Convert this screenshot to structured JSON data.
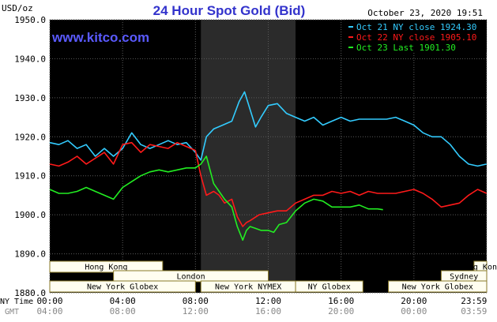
{
  "chart_data": {
    "type": "line",
    "title": "24 Hour Spot Gold (Bid)",
    "ylabel": "USD/oz",
    "watermark": "www.kitco.com",
    "timestamp": "October 23, 2020 19:51",
    "ylim": [
      1880,
      1950
    ],
    "y_ticks": [
      "1950.0",
      "1940.0",
      "1930.0",
      "1920.0",
      "1910.0",
      "1900.0",
      "1890.0",
      "1880.0"
    ],
    "x_label_ny": "NY Time",
    "x_label_gmt": "GMT",
    "x_ticks_ny": [
      "00:00",
      "04:00",
      "08:00",
      "12:00",
      "16:00",
      "20:00",
      "23:59"
    ],
    "x_ticks_gmt": [
      "04:00",
      "08:00",
      "12:00",
      "16:00",
      "20:00",
      "00:00",
      "03:59"
    ],
    "x_units": "hours since 00:00 NY time",
    "shaded_period": [
      8.3,
      13.5
    ],
    "grid": true,
    "legend_position": "top-right",
    "series": [
      {
        "name": "Oct 21 NY close 1924.30",
        "color": "#33ccff",
        "x": [
          0,
          0.5,
          1,
          1.5,
          2,
          2.5,
          3,
          3.5,
          4,
          4.5,
          5,
          5.5,
          6,
          6.5,
          7,
          7.5,
          8,
          8.3,
          8.6,
          9,
          9.5,
          10,
          10.4,
          10.7,
          11,
          11.3,
          11.6,
          12,
          12.5,
          13,
          13.5,
          14,
          14.5,
          15,
          15.5,
          16,
          16.5,
          17,
          17.5,
          18,
          18.5,
          19,
          19.5,
          20,
          20.5,
          21,
          21.5,
          22,
          22.5,
          23,
          23.5,
          23.99
        ],
        "values": [
          1918.5,
          1918,
          1919,
          1917,
          1918,
          1915,
          1917,
          1915,
          1917,
          1921,
          1918,
          1917,
          1918,
          1919,
          1918,
          1918.5,
          1916,
          1914,
          1920,
          1922,
          1923,
          1924,
          1929,
          1931.5,
          1927,
          1922.5,
          1925,
          1928,
          1928.5,
          1926,
          1925,
          1924,
          1925,
          1923,
          1924,
          1925,
          1924,
          1924.5,
          1924.5,
          1924.5,
          1924.5,
          1925,
          1924,
          1923,
          1921,
          1920,
          1920,
          1918,
          1915,
          1913,
          1912.5,
          1913
        ]
      },
      {
        "name": "Oct 22 NY close 1905.10",
        "color": "#ff1a1a",
        "x": [
          0,
          0.5,
          1,
          1.5,
          2,
          2.5,
          3,
          3.5,
          4,
          4.5,
          5,
          5.5,
          6,
          6.5,
          7,
          7.5,
          8,
          8.3,
          8.6,
          9,
          9.3,
          9.6,
          10,
          10.3,
          10.6,
          10.8,
          11,
          11.5,
          12,
          12.5,
          13,
          13.5,
          14,
          14.5,
          15,
          15.5,
          16,
          16.5,
          17,
          17.5,
          18,
          18.5,
          19,
          19.5,
          20,
          20.5,
          21,
          21.5,
          22,
          22.5,
          23,
          23.5,
          23.99
        ],
        "values": [
          1913,
          1912.5,
          1913.5,
          1915,
          1913,
          1914.5,
          1916,
          1913,
          1918,
          1918.5,
          1916,
          1918,
          1917.5,
          1917,
          1918.5,
          1917.5,
          1916.5,
          1910,
          1905,
          1906,
          1905,
          1903,
          1904,
          1899.5,
          1897,
          1898,
          1898.5,
          1900,
          1900.5,
          1901,
          1901,
          1903,
          1904,
          1905,
          1905,
          1906,
          1905.5,
          1906,
          1905,
          1906,
          1905.5,
          1905.5,
          1905.5,
          1906,
          1906.5,
          1905.5,
          1904,
          1902,
          1902.5,
          1903,
          1905,
          1906.5,
          1905.5
        ]
      },
      {
        "name": "Oct 23 Last 1901.30",
        "color": "#22ee22",
        "x": [
          0,
          0.5,
          1,
          1.5,
          2,
          2.5,
          3,
          3.5,
          4,
          4.5,
          5,
          5.5,
          6,
          6.5,
          7,
          7.5,
          8,
          8.3,
          8.6,
          9,
          9.3,
          9.6,
          10,
          10.3,
          10.6,
          10.8,
          11,
          11.3,
          11.6,
          12,
          12.3,
          12.6,
          13,
          13.5,
          14,
          14.5,
          15,
          15.5,
          16,
          16.5,
          17,
          17.5,
          18,
          18.3
        ],
        "values": [
          1906.5,
          1905.5,
          1905.5,
          1906,
          1907,
          1906,
          1905,
          1904,
          1907,
          1908.5,
          1910,
          1911,
          1911.5,
          1911,
          1911.5,
          1912,
          1912,
          1913,
          1915,
          1908,
          1906,
          1904,
          1902,
          1897,
          1893.5,
          1896,
          1897,
          1896.5,
          1896,
          1896,
          1895.5,
          1897.5,
          1898,
          1901,
          1903,
          1904,
          1903.5,
          1902,
          1902,
          1902,
          1902.5,
          1901.5,
          1901.5,
          1901.3
        ]
      }
    ],
    "sessions_row1": [
      {
        "label": "Hong Kong",
        "start": 0,
        "end": 6.2
      },
      {
        "label": "Hong Kong",
        "start": 23.3,
        "end": 24
      }
    ],
    "sessions_row2": [
      {
        "label": "London",
        "start": 3.5,
        "end": 12
      },
      {
        "label": "Sydney",
        "start": 21.5,
        "end": 24
      }
    ],
    "sessions_row3": [
      {
        "label": "New York Globex",
        "start": 0,
        "end": 8
      },
      {
        "label": "New York NYMEX",
        "start": 8.3,
        "end": 13.5
      },
      {
        "label": "NY Globex",
        "start": 13.5,
        "end": 17.2
      },
      {
        "label": "New York Globex",
        "start": 18.6,
        "end": 24
      }
    ]
  }
}
